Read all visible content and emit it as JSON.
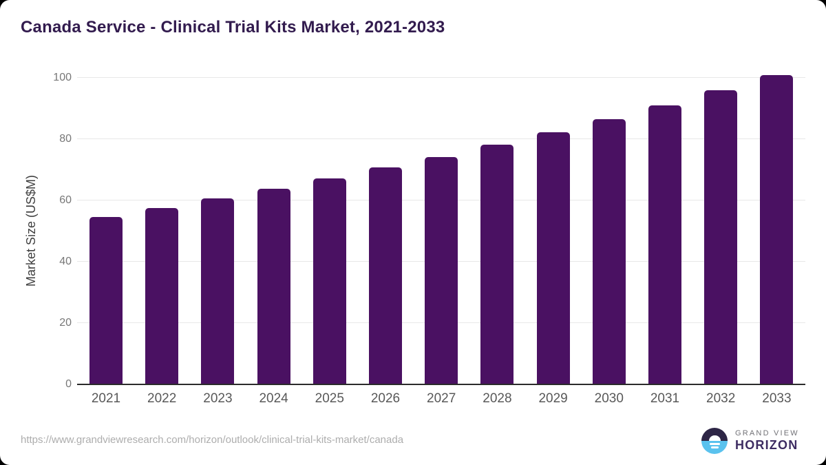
{
  "window": {
    "background_color": "#000000"
  },
  "card": {
    "background_color": "#ffffff"
  },
  "header": {
    "title": "Canada Service - Clinical Trial Kits Market, 2021-2033",
    "title_color": "#321b4e"
  },
  "chart_data": {
    "type": "bar",
    "title": "Canada Service - Clinical Trial Kits Market, 2021-2033",
    "categories": [
      "2021",
      "2022",
      "2023",
      "2024",
      "2025",
      "2026",
      "2027",
      "2028",
      "2029",
      "2030",
      "2031",
      "2032",
      "2033"
    ],
    "values": [
      54.4,
      57.3,
      60.5,
      63.5,
      66.9,
      70.6,
      74.0,
      77.9,
      82.1,
      86.3,
      90.9,
      95.7,
      100.6
    ],
    "xlabel": "",
    "ylabel": "Market Size (US$M)",
    "ylim": [
      0,
      100
    ],
    "yticks": [
      0,
      20,
      40,
      60,
      80,
      100
    ],
    "bar_color": "#4a1162",
    "grid": true,
    "gridline_color": "#e8e8e8",
    "axis_line_color": "#2b2b2b",
    "y_tick_label_color": "#777777",
    "x_tick_label_color": "#585858",
    "legend_position": "none"
  },
  "footer": {
    "source_url": "https://www.grandviewresearch.com/horizon/outlook/clinical-trial-kits-market/canada",
    "logo": {
      "top_text": "GRAND VIEW",
      "bottom_text": "HORIZON",
      "icon_dark_color": "#2d2545",
      "icon_blue_color": "#5ac2ee"
    }
  }
}
